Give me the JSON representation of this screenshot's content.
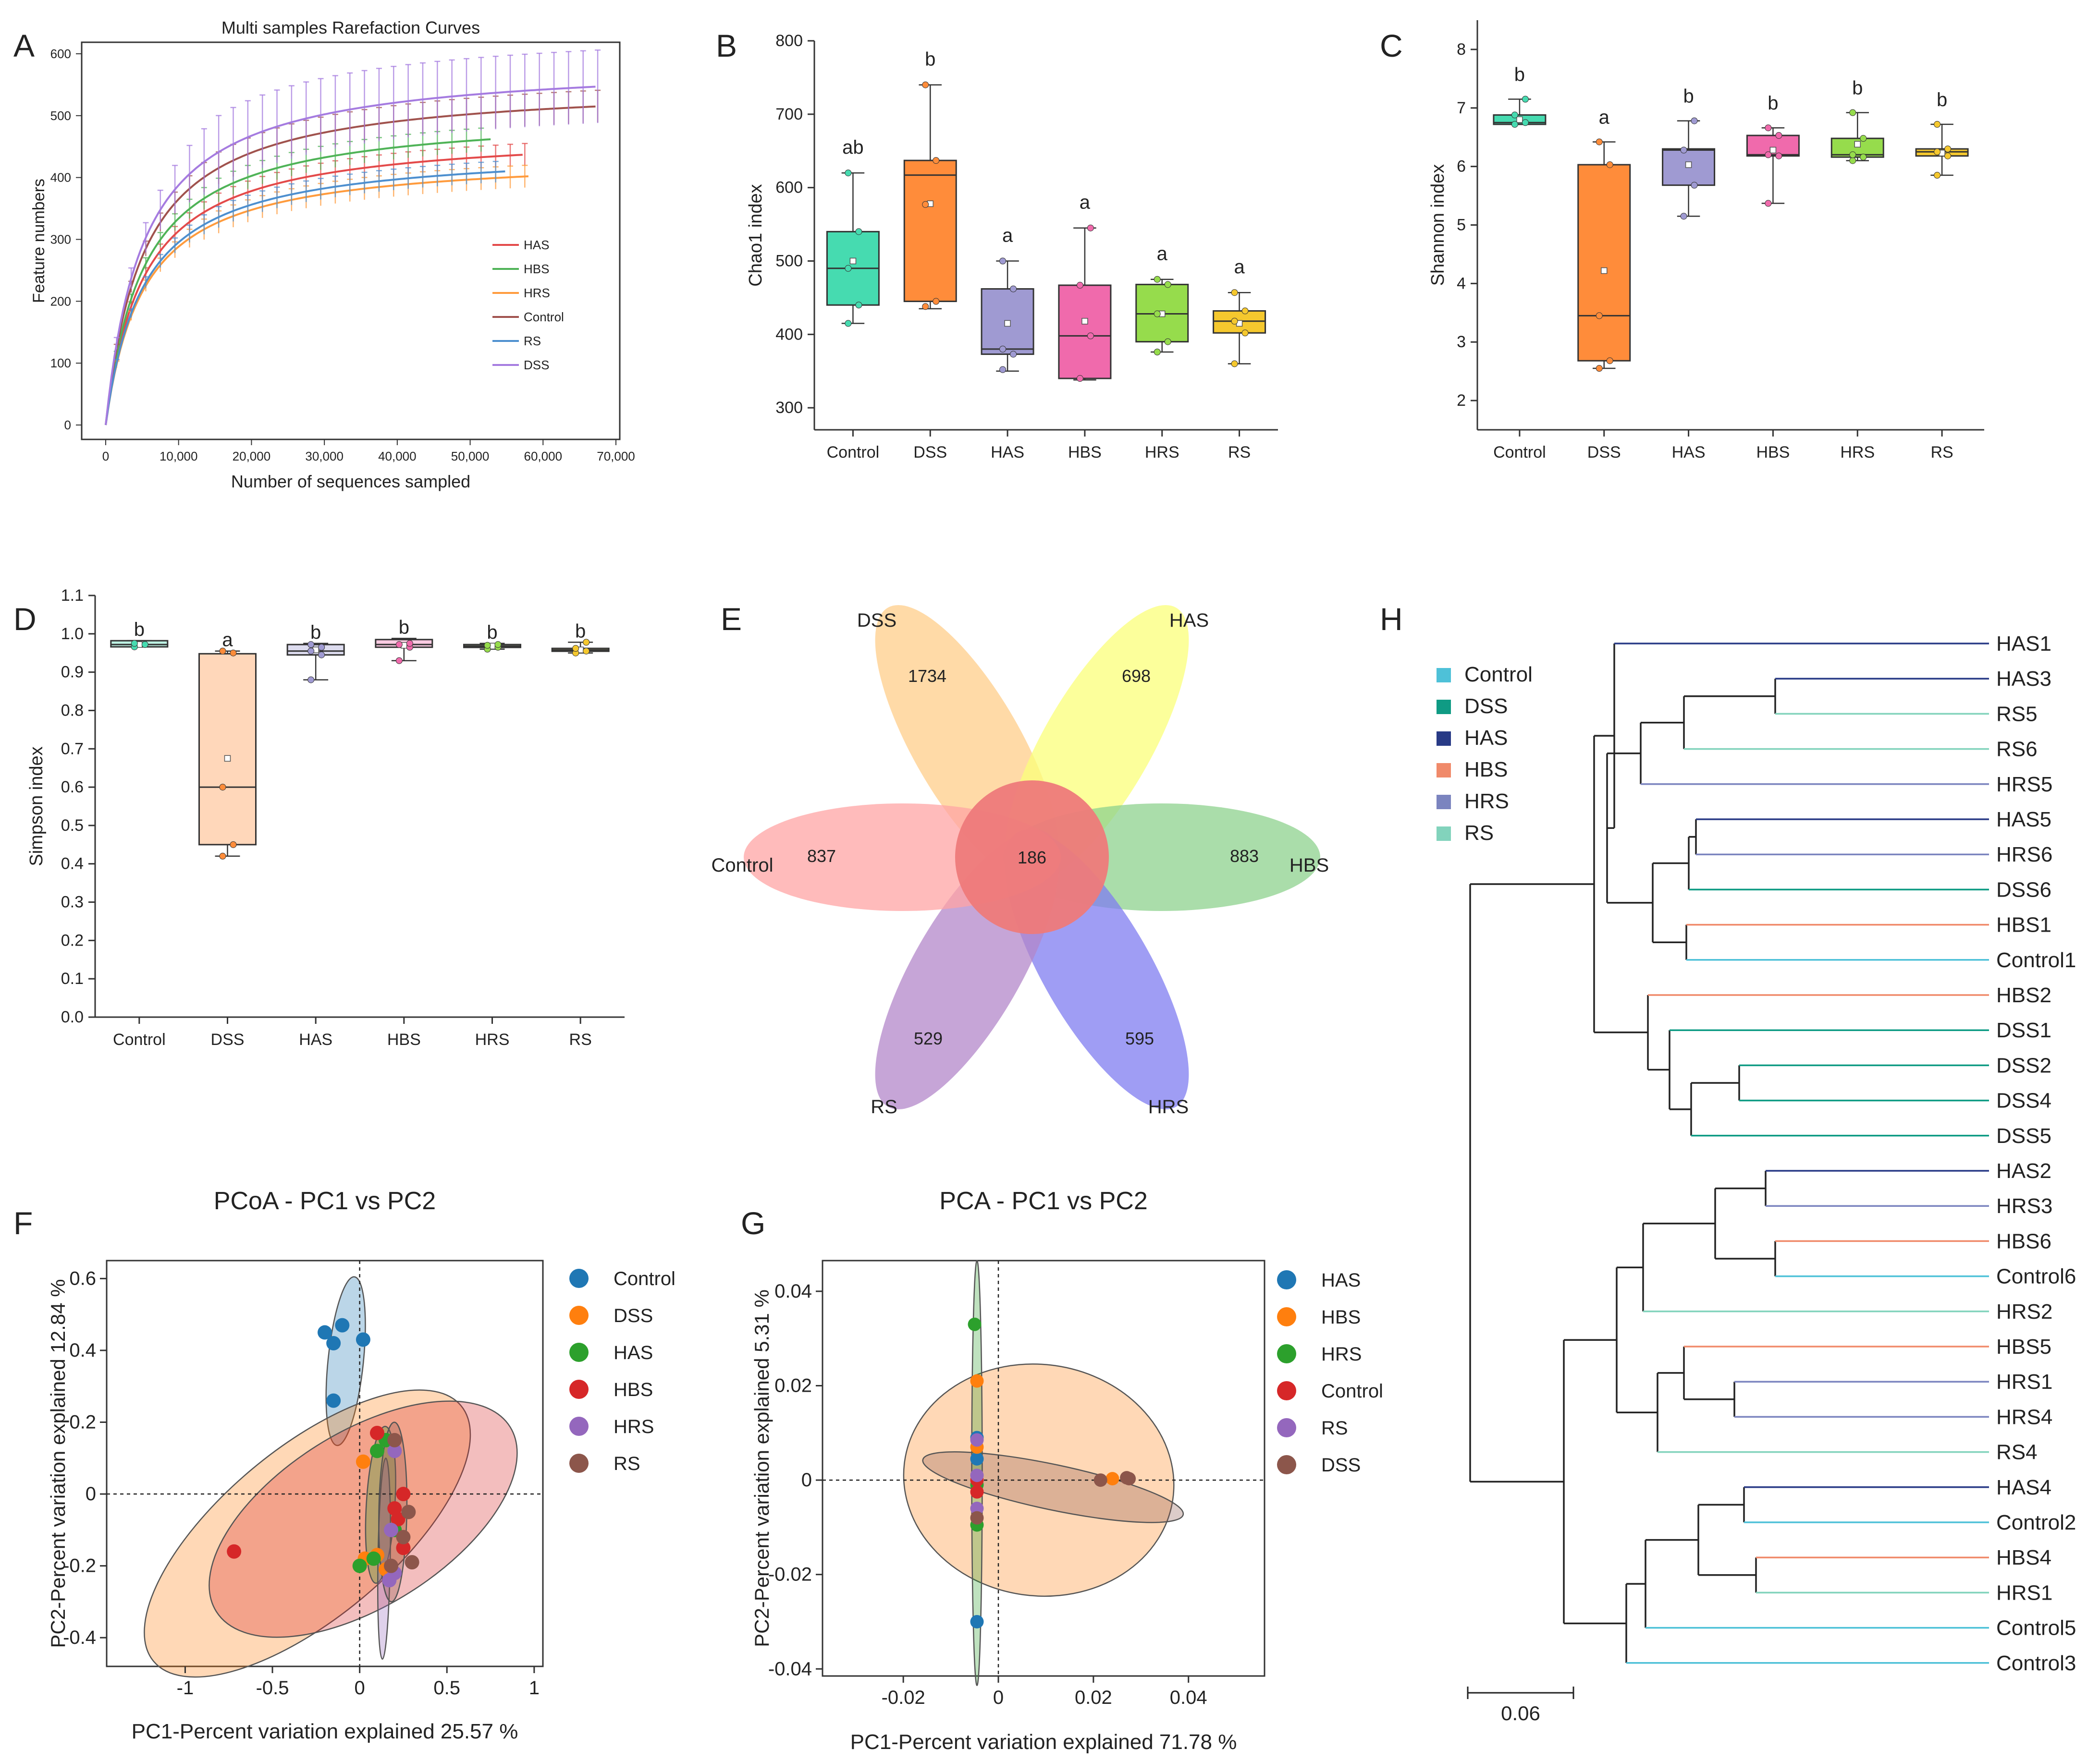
{
  "panel_letters": [
    "A",
    "B",
    "C",
    "D",
    "E",
    "F",
    "G",
    "H"
  ],
  "colors": {
    "Control": "#46dbb0",
    "DSS": "#ff8c3a",
    "HAS": "#9f9ad2",
    "HBS": "#f06aac",
    "HRS": "#96dc4c",
    "RS": "#f5c82e",
    "rf_HAS": "#e34a4a",
    "rf_HBS": "#4fb357",
    "rf_HRS": "#ff9b3d",
    "rf_Control": "#a0524d",
    "rf_RS": "#4d8fcf",
    "rf_DSS": "#a57be0",
    "pc_blue": "#1f77b4",
    "pc_orange": "#ff7f0e",
    "pc_green": "#2ca02c",
    "pc_red": "#d62728",
    "pc_purple": "#9467bd",
    "pc_brown": "#8c564b",
    "tree_Control": "#4ec1d8",
    "tree_DSS": "#0f9b84",
    "tree_HAS": "#283a86",
    "tree_HBS": "#f08a6a",
    "tree_HRS": "#7b84bf",
    "tree_RS": "#82d3bc"
  },
  "chart_data": [
    {
      "panel": "A",
      "type": "line",
      "title": "Multi samples Rarefaction Curves",
      "xlabel": "Number of sequences sampled",
      "ylabel": "Feature numbers",
      "xlim": [
        0,
        70000
      ],
      "ylim": [
        0,
        600
      ],
      "xticks": [
        0,
        10000,
        20000,
        30000,
        40000,
        50000,
        60000,
        70000
      ],
      "xtick_labels": [
        "0",
        "10,000",
        "20,000",
        "30,000",
        "40,000",
        "50,000",
        "60,000",
        "70,000"
      ],
      "yticks": [
        0,
        100,
        200,
        300,
        400,
        500,
        600
      ],
      "legend": [
        "HAS",
        "HBS",
        "HRS",
        "Control",
        "RS",
        "DSS"
      ],
      "series": [
        {
          "name": "HAS",
          "final": 437,
          "xmax": 57500,
          "err": 14
        },
        {
          "name": "HBS",
          "final": 462,
          "xmax": 53000,
          "err": 15
        },
        {
          "name": "HRS",
          "final": 402,
          "xmax": 58000,
          "err": 14
        },
        {
          "name": "Control",
          "final": 515,
          "xmax": 67500,
          "err": 22
        },
        {
          "name": "RS",
          "final": 410,
          "xmax": 55000,
          "err": 13
        },
        {
          "name": "DSS",
          "final": 547,
          "xmax": 67500,
          "err": 55
        }
      ]
    },
    {
      "panel": "B",
      "type": "box",
      "ylabel": "Chao1 index",
      "ylim": [
        270,
        800
      ],
      "yticks": [
        300,
        400,
        500,
        600,
        700,
        800
      ],
      "categories": [
        "Control",
        "DSS",
        "HAS",
        "HBS",
        "HRS",
        "RS"
      ],
      "boxes": [
        {
          "q1": 440,
          "median": 490,
          "q3": 540,
          "mean": 500,
          "min": 415,
          "max": 620,
          "points": [
            415,
            440,
            490,
            540,
            620
          ],
          "sig": "ab"
        },
        {
          "q1": 445,
          "median": 617,
          "q3": 637,
          "mean": 578,
          "min": 435,
          "max": 740,
          "points": [
            438,
            445,
            577,
            637,
            740
          ],
          "sig": "b"
        },
        {
          "q1": 373,
          "median": 380,
          "q3": 462,
          "mean": 415,
          "min": 350,
          "max": 500,
          "points": [
            352,
            373,
            380,
            462,
            500
          ],
          "sig": "a"
        },
        {
          "q1": 340,
          "median": 398,
          "q3": 467,
          "mean": 418,
          "min": 338,
          "max": 545,
          "points": [
            340,
            398,
            467,
            545
          ],
          "sig": "a"
        },
        {
          "q1": 390,
          "median": 428,
          "q3": 468,
          "mean": 428,
          "min": 376,
          "max": 475,
          "points": [
            376,
            390,
            428,
            468,
            475
          ],
          "sig": "a"
        },
        {
          "q1": 402,
          "median": 418,
          "q3": 432,
          "mean": 415,
          "min": 360,
          "max": 457,
          "points": [
            360,
            402,
            418,
            432,
            457
          ],
          "sig": "a"
        }
      ]
    },
    {
      "panel": "C",
      "type": "box",
      "ylabel": "Shannon index",
      "ylim": [
        1.5,
        8.5
      ],
      "yticks": [
        2,
        3,
        4,
        5,
        6,
        7,
        8
      ],
      "categories": [
        "Control",
        "DSS",
        "HAS",
        "HBS",
        "HRS",
        "RS"
      ],
      "boxes": [
        {
          "q1": 6.72,
          "median": 6.75,
          "q3": 6.88,
          "mean": 6.8,
          "min": 6.72,
          "max": 7.15,
          "points": [
            6.72,
            6.75,
            6.88,
            7.15
          ],
          "sig": "b"
        },
        {
          "q1": 2.68,
          "median": 3.45,
          "q3": 6.03,
          "mean": 4.22,
          "min": 2.55,
          "max": 6.42,
          "points": [
            2.55,
            2.68,
            3.45,
            6.03,
            6.42
          ],
          "sig": "a"
        },
        {
          "q1": 5.68,
          "median": 6.28,
          "q3": 6.3,
          "mean": 6.03,
          "min": 5.15,
          "max": 6.78,
          "points": [
            5.15,
            5.68,
            6.28,
            6.78
          ],
          "sig": "b"
        },
        {
          "q1": 6.18,
          "median": 6.2,
          "q3": 6.53,
          "mean": 6.28,
          "min": 5.37,
          "max": 6.66,
          "points": [
            5.37,
            6.18,
            6.2,
            6.53,
            6.66
          ],
          "sig": "b"
        },
        {
          "q1": 6.16,
          "median": 6.2,
          "q3": 6.48,
          "mean": 6.38,
          "min": 6.1,
          "max": 6.92,
          "points": [
            6.1,
            6.16,
            6.2,
            6.48,
            6.92
          ],
          "sig": "b"
        },
        {
          "q1": 6.18,
          "median": 6.25,
          "q3": 6.3,
          "mean": 6.23,
          "min": 5.85,
          "max": 6.72,
          "points": [
            5.85,
            6.18,
            6.25,
            6.3,
            6.72
          ],
          "sig": "b"
        }
      ]
    },
    {
      "panel": "D",
      "type": "box",
      "ylabel": "Simpson index",
      "ylim": [
        0,
        1.1
      ],
      "yticks": [
        0,
        0.1,
        0.2,
        0.3,
        0.4,
        0.5,
        0.6,
        0.7,
        0.8,
        0.9,
        1.0,
        1.1
      ],
      "ytick_labels": [
        "0.0",
        "0.1",
        "0.2",
        "0.3",
        "0.4",
        "0.5",
        "0.6",
        "0.7",
        "0.8",
        "0.9",
        "1.0",
        "1.1"
      ],
      "categories": [
        "Control",
        "DSS",
        "HAS",
        "HBS",
        "HRS",
        "RS"
      ],
      "boxes": [
        {
          "q1": 0.966,
          "median": 0.972,
          "q3": 0.982,
          "mean": 0.972,
          "min": 0.966,
          "max": 0.982,
          "points": [
            0.966,
            0.972,
            0.975
          ],
          "sig": "b"
        },
        {
          "q1": 0.45,
          "median": 0.6,
          "q3": 0.948,
          "mean": 0.675,
          "min": 0.42,
          "max": 0.955,
          "points": [
            0.42,
            0.45,
            0.6,
            0.95,
            0.955
          ],
          "sig": "a"
        },
        {
          "q1": 0.945,
          "median": 0.955,
          "q3": 0.972,
          "mean": 0.958,
          "min": 0.88,
          "max": 0.975,
          "points": [
            0.88,
            0.945,
            0.955,
            0.965,
            0.972
          ],
          "sig": "b"
        },
        {
          "q1": 0.965,
          "median": 0.972,
          "q3": 0.985,
          "mean": 0.97,
          "min": 0.93,
          "max": 0.988,
          "points": [
            0.93,
            0.965,
            0.972,
            0.975
          ],
          "sig": "b"
        },
        {
          "q1": 0.965,
          "median": 0.968,
          "q3": 0.972,
          "mean": 0.968,
          "min": 0.96,
          "max": 0.975,
          "points": [
            0.96,
            0.965,
            0.97,
            0.972
          ],
          "sig": "b"
        },
        {
          "q1": 0.955,
          "median": 0.958,
          "q3": 0.962,
          "mean": 0.958,
          "min": 0.95,
          "max": 0.978,
          "points": [
            0.95,
            0.955,
            0.962,
            0.978
          ],
          "sig": "b"
        }
      ]
    },
    {
      "panel": "E",
      "type": "venn-flower",
      "core": "186",
      "petals": [
        {
          "label": "DSS",
          "value": "1734"
        },
        {
          "label": "HAS",
          "value": "698"
        },
        {
          "label": "HBS",
          "value": "883"
        },
        {
          "label": "HRS",
          "value": "595"
        },
        {
          "label": "RS",
          "value": "529"
        },
        {
          "label": "Control",
          "value": "837"
        }
      ]
    },
    {
      "panel": "F",
      "type": "scatter",
      "title": "PCoA - PC1 vs PC2",
      "xlabel": "PC1-Percent variation explained 25.57 %",
      "ylabel": "PC2-Percent variation explained 12.84 %",
      "xlim": [
        -1.45,
        1.05
      ],
      "ylim": [
        -0.48,
        0.65
      ],
      "xticks": [
        -1,
        -0.5,
        0,
        0.5,
        1
      ],
      "xtick_labels": [
        "-1",
        "-0.5",
        "0",
        "0.5",
        "1"
      ],
      "yticks": [
        -0.4,
        -0.2,
        0,
        0.2,
        0.4,
        0.6
      ],
      "ytick_labels": [
        "-0.4",
        "-0.2",
        "0",
        "0.2",
        "0.4",
        "0.6"
      ],
      "series": [
        {
          "name": "Control",
          "points": [
            [
              -0.2,
              0.45
            ],
            [
              -0.15,
              0.42
            ],
            [
              -0.1,
              0.47
            ],
            [
              0.02,
              0.43
            ],
            [
              -0.15,
              0.26
            ]
          ]
        },
        {
          "name": "DSS",
          "points": [
            [
              0.02,
              0.09
            ],
            [
              0.1,
              -0.17
            ],
            [
              0.15,
              -0.21
            ],
            [
              0.03,
              -0.18
            ]
          ]
        },
        {
          "name": "HAS",
          "points": [
            [
              0.1,
              0.12
            ],
            [
              0.0,
              -0.2
            ],
            [
              0.2,
              -0.1
            ],
            [
              0.15,
              0.15
            ],
            [
              0.08,
              -0.18
            ]
          ]
        },
        {
          "name": "HBS",
          "points": [
            [
              -0.72,
              -0.16
            ],
            [
              0.1,
              0.17
            ],
            [
              0.25,
              0.0
            ],
            [
              0.2,
              -0.04
            ],
            [
              0.22,
              -0.07
            ],
            [
              0.25,
              -0.15
            ]
          ]
        },
        {
          "name": "HRS",
          "points": [
            [
              0.2,
              0.12
            ],
            [
              0.18,
              -0.1
            ],
            [
              0.2,
              -0.22
            ],
            [
              0.17,
              -0.24
            ]
          ]
        },
        {
          "name": "RS",
          "points": [
            [
              0.2,
              0.15
            ],
            [
              0.25,
              -0.12
            ],
            [
              0.28,
              -0.05
            ],
            [
              0.3,
              -0.19
            ],
            [
              0.18,
              -0.2
            ]
          ]
        }
      ],
      "ellipses": [
        {
          "group": "Control",
          "cx": -0.08,
          "cy": 0.37,
          "rx": 0.24,
          "ry": 0.095,
          "angle": 78
        },
        {
          "group": "DSS",
          "cx": -0.3,
          "cy": -0.11,
          "rx": 0.95,
          "ry": 0.25,
          "angle": 22
        },
        {
          "group": "HBS",
          "cx": 0.02,
          "cy": -0.07,
          "rx": 0.88,
          "ry": 0.25,
          "angle": 17
        },
        {
          "group": "HAS",
          "cx": 0.12,
          "cy": -0.03,
          "rx": 0.22,
          "ry": 0.08,
          "angle": 83
        },
        {
          "group": "HRS",
          "cx": 0.14,
          "cy": -0.18,
          "rx": 0.28,
          "ry": 0.035,
          "angle": 88
        },
        {
          "group": "RS",
          "cx": 0.19,
          "cy": -0.05,
          "rx": 0.25,
          "ry": 0.08,
          "angle": 88
        }
      ],
      "legend": [
        "Control",
        "DSS",
        "HAS",
        "HBS",
        "HRS",
        "RS"
      ]
    },
    {
      "panel": "G",
      "type": "scatter",
      "title": "PCA - PC1 vs PC2",
      "xlabel": "PC1-Percent variation explained 71.78 %",
      "ylabel": "PC2-Percent variation explained 5.31 %",
      "xlim": [
        -0.037,
        0.056
      ],
      "ylim": [
        -0.0415,
        0.0465
      ],
      "xticks": [
        -0.02,
        0,
        0.02,
        0.04
      ],
      "xtick_labels": [
        "-0.02",
        "0",
        "0.02",
        "0.04"
      ],
      "yticks": [
        -0.04,
        -0.02,
        0,
        0.02,
        0.04
      ],
      "ytick_labels": [
        "-0.04",
        "-0.02",
        "0",
        "0.02",
        "0.04"
      ],
      "series": [
        {
          "name": "HAS",
          "points": [
            [
              -0.0045,
              0.009
            ],
            [
              -0.0045,
              0.0045
            ],
            [
              -0.0045,
              -0.03
            ]
          ]
        },
        {
          "name": "HBS",
          "points": [
            [
              -0.0045,
              0.021
            ],
            [
              -0.0045,
              0.007
            ],
            [
              0.024,
              0.0003
            ]
          ]
        },
        {
          "name": "HRS",
          "points": [
            [
              -0.005,
              0.033
            ],
            [
              -0.0045,
              -0.0095
            ],
            [
              -0.0045,
              -0.001
            ]
          ]
        },
        {
          "name": "Control",
          "points": [
            [
              -0.0045,
              -0.0025
            ],
            [
              -0.0045,
              0.0
            ]
          ]
        },
        {
          "name": "RS",
          "points": [
            [
              -0.0045,
              0.0085
            ],
            [
              -0.0045,
              -0.006
            ],
            [
              -0.0045,
              0.001
            ]
          ]
        },
        {
          "name": "DSS",
          "points": [
            [
              0.0215,
              0.0
            ],
            [
              0.027,
              0.0005
            ],
            [
              0.0275,
              0.0003
            ],
            [
              -0.0045,
              -0.008
            ]
          ]
        }
      ],
      "ellipses": [
        {
          "group": "HBS",
          "cx": 0.0085,
          "cy": 0.0,
          "rx": 0.0285,
          "ry": 0.0245,
          "angle": -8
        },
        {
          "group": "DSS",
          "cx": 0.0115,
          "cy": -0.0015,
          "rx": 0.028,
          "ry": 0.0048,
          "angle": -12
        },
        {
          "group": "HRS",
          "cx": -0.0045,
          "cy": 0.0015,
          "rx": 0.0011,
          "ry": 0.045,
          "angle": 0
        }
      ],
      "legend": [
        "HAS",
        "HBS",
        "HRS",
        "Control",
        "RS",
        "DSS"
      ]
    },
    {
      "panel": "H",
      "type": "dendrogram",
      "scale_label": "0.06",
      "legend": [
        "Control",
        "DSS",
        "HAS",
        "HBS",
        "HRS",
        "RS"
      ],
      "leaves": [
        {
          "label": "HAS1",
          "group": "HAS"
        },
        {
          "label": "HAS3",
          "group": "HAS"
        },
        {
          "label": "RS5",
          "group": "RS"
        },
        {
          "label": "RS6",
          "group": "RS"
        },
        {
          "label": "HRS5",
          "group": "HRS"
        },
        {
          "label": "HAS5",
          "group": "HAS"
        },
        {
          "label": "HRS6",
          "group": "HRS"
        },
        {
          "label": "DSS6",
          "group": "DSS"
        },
        {
          "label": "HBS1",
          "group": "HBS"
        },
        {
          "label": "Control1",
          "group": "Control"
        },
        {
          "label": "HBS2",
          "group": "HBS"
        },
        {
          "label": "DSS1",
          "group": "DSS"
        },
        {
          "label": "DSS2",
          "group": "DSS"
        },
        {
          "label": "DSS4",
          "group": "DSS"
        },
        {
          "label": "DSS5",
          "group": "DSS"
        },
        {
          "label": "HAS2",
          "group": "HAS"
        },
        {
          "label": "HRS3",
          "group": "HRS"
        },
        {
          "label": "HBS6",
          "group": "HBS"
        },
        {
          "label": "Control6",
          "group": "Control"
        },
        {
          "label": "HRS2",
          "group": "RS"
        },
        {
          "label": "HBS5",
          "group": "HBS"
        },
        {
          "label": "HRS1",
          "group": "HRS"
        },
        {
          "label": "HRS4",
          "group": "HRS"
        },
        {
          "label": "RS4",
          "group": "RS"
        },
        {
          "label": "HAS4",
          "group": "HAS"
        },
        {
          "label": "Control2",
          "group": "Control"
        },
        {
          "label": "HBS4",
          "group": "HBS"
        },
        {
          "label": "HRS1",
          "group": "RS"
        },
        {
          "label": "Control5",
          "group": "Control"
        },
        {
          "label": "Control3",
          "group": "Control"
        }
      ]
    }
  ]
}
